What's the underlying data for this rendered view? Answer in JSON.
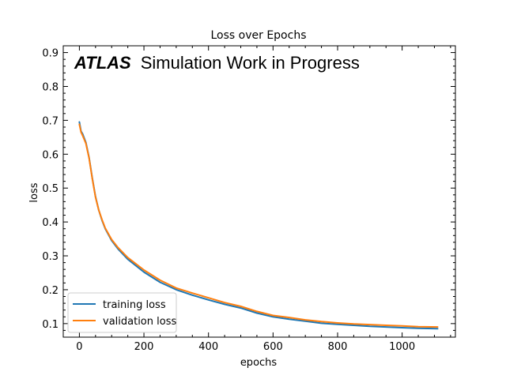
{
  "chart_data": {
    "type": "line",
    "title": "Loss over Epochs",
    "xlabel": "epochs",
    "ylabel": "loss",
    "xlim": [
      -50,
      1165
    ],
    "ylim": [
      0.06,
      0.92
    ],
    "x_ticks": [
      0,
      200,
      400,
      600,
      800,
      1000
    ],
    "y_ticks": [
      0.1,
      0.2,
      0.3,
      0.4,
      0.5,
      0.6,
      0.7,
      0.8,
      0.9
    ],
    "x_tick_labels": [
      "0",
      "200",
      "400",
      "600",
      "800",
      "1000"
    ],
    "y_tick_labels": [
      "0.1",
      "0.2",
      "0.3",
      "0.4",
      "0.5",
      "0.6",
      "0.7",
      "0.8",
      "0.9"
    ],
    "grid": false,
    "legend_position": "lower-left",
    "annotation": {
      "brand": "ATLAS",
      "label": "Simulation Work in Progress"
    },
    "series": [
      {
        "name": "training loss",
        "color": "#1f77b4",
        "x": [
          0,
          5,
          10,
          20,
          30,
          40,
          50,
          60,
          70,
          80,
          100,
          120,
          150,
          200,
          250,
          300,
          350,
          400,
          450,
          500,
          550,
          600,
          650,
          700,
          750,
          800,
          850,
          900,
          950,
          1000,
          1050,
          1110
        ],
        "y": [
          0.695,
          0.668,
          0.66,
          0.635,
          0.59,
          0.53,
          0.475,
          0.435,
          0.405,
          0.38,
          0.345,
          0.32,
          0.29,
          0.252,
          0.222,
          0.2,
          0.184,
          0.17,
          0.157,
          0.146,
          0.131,
          0.12,
          0.113,
          0.107,
          0.101,
          0.098,
          0.095,
          0.092,
          0.09,
          0.088,
          0.086,
          0.085
        ]
      },
      {
        "name": "validation loss",
        "color": "#ff7f0e",
        "x": [
          0,
          5,
          10,
          20,
          30,
          40,
          50,
          60,
          70,
          80,
          100,
          120,
          150,
          200,
          250,
          300,
          350,
          400,
          450,
          500,
          550,
          600,
          650,
          700,
          750,
          800,
          850,
          900,
          950,
          1000,
          1050,
          1110
        ],
        "y": [
          0.688,
          0.665,
          0.655,
          0.632,
          0.588,
          0.528,
          0.473,
          0.435,
          0.407,
          0.382,
          0.348,
          0.324,
          0.295,
          0.258,
          0.228,
          0.205,
          0.19,
          0.176,
          0.162,
          0.151,
          0.136,
          0.124,
          0.118,
          0.111,
          0.106,
          0.102,
          0.099,
          0.097,
          0.095,
          0.093,
          0.091,
          0.09
        ]
      }
    ]
  }
}
